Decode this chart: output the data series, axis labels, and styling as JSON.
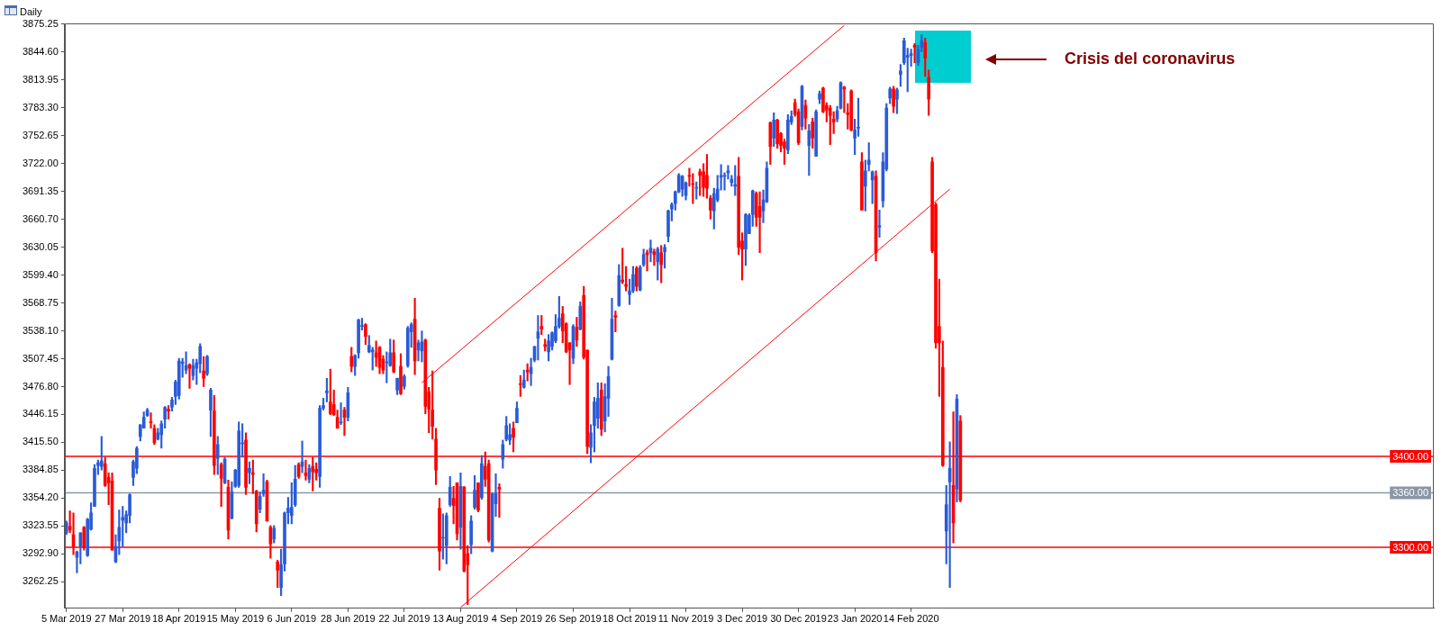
{
  "chart_data": {
    "type": "candlestick",
    "title": "Daily",
    "categories": [
      "5 Mar 2019",
      null,
      null,
      null,
      null,
      null,
      null,
      null,
      null,
      null,
      null,
      null,
      null,
      null,
      null,
      null,
      "27 Mar 2019",
      null,
      null,
      null,
      null,
      null,
      null,
      null,
      null,
      null,
      null,
      null,
      null,
      null,
      null,
      null,
      "18 Apr 2019",
      null,
      null,
      null,
      null,
      null,
      null,
      null,
      null,
      null,
      null,
      null,
      null,
      null,
      null,
      null,
      "15 May 2019",
      null,
      null,
      null,
      null,
      null,
      null,
      null,
      null,
      null,
      null,
      null,
      null,
      null,
      null,
      null,
      "6 Jun 2019",
      null,
      null,
      null,
      null,
      null,
      null,
      null,
      null,
      null,
      null,
      null,
      null,
      null,
      null,
      null,
      "28 Jun 2019",
      null,
      null,
      null,
      null,
      null,
      null,
      null,
      null,
      null,
      null,
      null,
      null,
      null,
      null,
      null,
      "22 Jul 2019",
      null,
      null,
      null,
      null,
      null,
      null,
      null,
      null,
      null,
      null,
      null,
      null,
      null,
      null,
      null,
      "13 Aug 2019",
      null,
      null,
      null,
      null,
      null,
      null,
      null,
      null,
      null,
      null,
      null,
      null,
      null,
      null,
      null,
      "4 Sep 2019",
      null,
      null,
      null,
      null,
      null,
      null,
      null,
      null,
      null,
      null,
      null,
      null,
      null,
      null,
      null,
      "26 Sep 2019",
      null,
      null,
      null,
      null,
      null,
      null,
      null,
      null,
      null,
      null,
      null,
      null,
      null,
      null,
      null,
      "18 Oct 2019",
      null,
      null,
      null,
      null,
      null,
      null,
      null,
      null,
      null,
      null,
      null,
      null,
      null,
      null,
      null,
      "11 Nov 2019",
      null,
      null,
      null,
      null,
      null,
      null,
      null,
      null,
      null,
      null,
      null,
      null,
      null,
      null,
      null,
      "3 Dec 2019",
      null,
      null,
      null,
      null,
      null,
      null,
      null,
      null,
      null,
      null,
      null,
      null,
      null,
      null,
      null,
      "30 Dec 2019",
      null,
      null,
      null,
      null,
      null,
      null,
      null,
      null,
      null,
      null,
      null,
      null,
      null,
      null,
      null,
      "23 Jan 2020",
      null,
      null,
      null,
      null,
      null,
      null,
      null,
      null,
      null,
      null,
      null,
      null,
      null,
      null,
      null,
      "14 Feb 2020",
      null,
      null,
      null,
      null,
      null,
      null,
      null,
      null,
      null,
      null,
      null,
      null,
      null,
      null
    ],
    "ohlc": [
      [
        3316,
        3329,
        3314,
        3327
      ],
      [
        3323,
        3340,
        3316,
        3319
      ],
      [
        3314,
        3338,
        3292,
        3301
      ],
      [
        3289,
        3296,
        3272,
        3295
      ],
      [
        3301,
        3316,
        3282,
        3316
      ],
      [
        3322,
        3323,
        3297,
        3300
      ],
      [
        3291,
        3332,
        3290,
        3331
      ],
      [
        3320,
        3349,
        3319,
        3338
      ],
      [
        3345,
        3391,
        3345,
        3387
      ],
      [
        3390,
        3396,
        3380,
        3393
      ],
      [
        3389,
        3422,
        3385,
        3395
      ],
      [
        3392,
        3399,
        3367,
        3368
      ],
      [
        3377,
        3382,
        3347,
        3371
      ],
      [
        3373,
        3382,
        3297,
        3297
      ],
      [
        3284,
        3314,
        3283,
        3301
      ],
      [
        3307,
        3341,
        3292,
        3322
      ],
      [
        3330,
        3345,
        3301,
        3333
      ],
      [
        3327,
        3340,
        3316,
        3336
      ],
      [
        3335,
        3359,
        3327,
        3358
      ],
      [
        3377,
        3396,
        3368,
        3394
      ],
      [
        3387,
        3411,
        3381,
        3409
      ],
      [
        3422,
        3435,
        3417,
        3435
      ],
      [
        3431,
        3449,
        3431,
        3443
      ],
      [
        3445,
        3453,
        3444,
        3451
      ],
      [
        3438,
        3448,
        3431,
        3437
      ],
      [
        3431,
        3435,
        3413,
        3415
      ],
      [
        3419,
        3431,
        3418,
        3426
      ],
      [
        3424,
        3439,
        3409,
        3436
      ],
      [
        3441,
        3455,
        3431,
        3454
      ],
      [
        3452,
        3456,
        3441,
        3450
      ],
      [
        3454,
        3465,
        3450,
        3462
      ],
      [
        3466,
        3484,
        3457,
        3482
      ],
      [
        3467,
        3508,
        3463,
        3505
      ],
      [
        3502,
        3508,
        3487,
        3504
      ],
      [
        3495,
        3515,
        3491,
        3500
      ],
      [
        3501,
        3502,
        3475,
        3497
      ],
      [
        3489,
        3507,
        3484,
        3500
      ],
      [
        3497,
        3507,
        3479,
        3503
      ],
      [
        3502,
        3524,
        3492,
        3521
      ],
      [
        3494,
        3510,
        3477,
        3486
      ],
      [
        3491,
        3511,
        3489,
        3510
      ],
      [
        3451,
        3475,
        3422,
        3473
      ],
      [
        3450,
        3467,
        3380,
        3390
      ],
      [
        3398,
        3422,
        3380,
        3413
      ],
      [
        3391,
        3393,
        3345,
        3376
      ],
      [
        3371,
        3399,
        3370,
        3397
      ],
      [
        3366,
        3374,
        3309,
        3319
      ],
      [
        3332,
        3372,
        3331,
        3361
      ],
      [
        3367,
        3386,
        3366,
        3385
      ],
      [
        3368,
        3438,
        3366,
        3428
      ],
      [
        3414,
        3436,
        3399,
        3415
      ],
      [
        3418,
        3426,
        3358,
        3366
      ],
      [
        3382,
        3394,
        3370,
        3387
      ],
      [
        3382,
        3396,
        3359,
        3380
      ],
      [
        3362,
        3363,
        3317,
        3326
      ],
      [
        3342,
        3361,
        3338,
        3356
      ],
      [
        3359,
        3381,
        3356,
        3363
      ],
      [
        3372,
        3374,
        3329,
        3329
      ],
      [
        3322,
        3324,
        3288,
        3304
      ],
      [
        3309,
        3324,
        3305,
        3321
      ],
      [
        3284,
        3286,
        3256,
        3275
      ],
      [
        3256,
        3298,
        3247,
        3281
      ],
      [
        3282,
        3339,
        3274,
        3338
      ],
      [
        3338,
        3355,
        3326,
        3343
      ],
      [
        3335,
        3371,
        3326,
        3344
      ],
      [
        3347,
        3390,
        3345,
        3375
      ],
      [
        3391,
        3393,
        3376,
        3378
      ],
      [
        3389,
        3417,
        3382,
        3394
      ],
      [
        3382,
        3396,
        3374,
        3379
      ],
      [
        3375,
        3391,
        3371,
        3387
      ],
      [
        3389,
        3399,
        3362,
        3383
      ],
      [
        3386,
        3393,
        3374,
        3382
      ],
      [
        3378,
        3456,
        3366,
        3453
      ],
      [
        3453,
        3464,
        3451,
        3456
      ],
      [
        3470,
        3486,
        3460,
        3472
      ],
      [
        3460,
        3496,
        3446,
        3447
      ],
      [
        3457,
        3473,
        3445,
        3446
      ],
      [
        3443,
        3451,
        3431,
        3431
      ],
      [
        3437,
        3459,
        3435,
        3438
      ],
      [
        3451,
        3454,
        3423,
        3443
      ],
      [
        3443,
        3476,
        3439,
        3470
      ],
      [
        3510,
        3520,
        3493,
        3499
      ],
      [
        3499,
        3512,
        3489,
        3511
      ],
      [
        3514,
        3551,
        3508,
        3550
      ],
      [
        3543,
        3552,
        3539,
        3544
      ],
      [
        3545,
        3546,
        3523,
        3532
      ],
      [
        3515,
        3533,
        3514,
        3522
      ],
      [
        3515,
        3520,
        3495,
        3517
      ],
      [
        3514,
        3527,
        3499,
        3509
      ],
      [
        3520,
        3521,
        3491,
        3498
      ],
      [
        3507,
        3511,
        3491,
        3495
      ],
      [
        3503,
        3515,
        3481,
        3504
      ],
      [
        3500,
        3529,
        3499,
        3514
      ],
      [
        3514,
        3528,
        3492,
        3493
      ],
      [
        3473,
        3486,
        3468,
        3486
      ],
      [
        3499,
        3513,
        3468,
        3469
      ],
      [
        3477,
        3490,
        3474,
        3488
      ],
      [
        3500,
        3543,
        3498,
        3541
      ],
      [
        3537,
        3547,
        3520,
        3545
      ],
      [
        3551,
        3574,
        3490,
        3505
      ],
      [
        3517,
        3528,
        3505,
        3525
      ],
      [
        3516,
        3538,
        3504,
        3526
      ],
      [
        3528,
        3529,
        3447,
        3455
      ],
      [
        3471,
        3476,
        3426,
        3452
      ],
      [
        3451,
        3494,
        3419,
        3433
      ],
      [
        3419,
        3431,
        3369,
        3385
      ],
      [
        3343,
        3354,
        3275,
        3296
      ],
      [
        3310,
        3337,
        3287,
        3311
      ],
      [
        3302,
        3338,
        3282,
        3335
      ],
      [
        3347,
        3378,
        3345,
        3366
      ],
      [
        3354,
        3367,
        3326,
        3346
      ],
      [
        3371,
        3371,
        3308,
        3315
      ],
      [
        3322,
        3382,
        3298,
        3367
      ],
      [
        3366,
        3367,
        3273,
        3274
      ],
      [
        3293,
        3302,
        3237,
        3281
      ],
      [
        3303,
        3335,
        3293,
        3329
      ],
      [
        3344,
        3379,
        3342,
        3363
      ],
      [
        3371,
        3371,
        3339,
        3341
      ],
      [
        3355,
        3401,
        3353,
        3392
      ],
      [
        3389,
        3405,
        3367,
        3375
      ],
      [
        3392,
        3396,
        3306,
        3308
      ],
      [
        3296,
        3360,
        3295,
        3359
      ],
      [
        3348,
        3381,
        3334,
        3359
      ],
      [
        3366,
        3370,
        3333,
        3364
      ],
      [
        3397,
        3418,
        3387,
        3413
      ],
      [
        3419,
        3444,
        3417,
        3434
      ],
      [
        3418,
        3436,
        3413,
        3424
      ],
      [
        3431,
        3438,
        3405,
        3421
      ],
      [
        3437,
        3460,
        3437,
        3453
      ],
      [
        3480,
        3489,
        3466,
        3479
      ],
      [
        3476,
        3495,
        3475,
        3484
      ],
      [
        3495,
        3502,
        3483,
        3493
      ],
      [
        3491,
        3508,
        3478,
        3498
      ],
      [
        3506,
        3521,
        3504,
        3521
      ],
      [
        3530,
        3555,
        3506,
        3537
      ],
      [
        3543,
        3555,
        3534,
        3540
      ],
      [
        3523,
        3529,
        3516,
        3521
      ],
      [
        3515,
        3534,
        3505,
        3527
      ],
      [
        3521,
        3537,
        3517,
        3536
      ],
      [
        3527,
        3556,
        3525,
        3543
      ],
      [
        3543,
        3576,
        3541,
        3552
      ],
      [
        3557,
        3565,
        3525,
        3538
      ],
      [
        3546,
        3547,
        3514,
        3515
      ],
      [
        3525,
        3525,
        3479,
        3517
      ],
      [
        3508,
        3545,
        3502,
        3543
      ],
      [
        3542,
        3553,
        3521,
        3528
      ],
      [
        3540,
        3570,
        3539,
        3565
      ],
      [
        3577,
        3587,
        3507,
        3509
      ],
      [
        3517,
        3517,
        3403,
        3411
      ],
      [
        3410,
        3435,
        3393,
        3426
      ],
      [
        3434,
        3465,
        3405,
        3460
      ],
      [
        3442,
        3481,
        3431,
        3464
      ],
      [
        3473,
        3481,
        3423,
        3430
      ],
      [
        3439,
        3480,
        3427,
        3466
      ],
      [
        3464,
        3499,
        3444,
        3488
      ],
      [
        3507,
        3574,
        3506,
        3551
      ],
      [
        3555,
        3560,
        3537,
        3553
      ],
      [
        3566,
        3611,
        3565,
        3599
      ],
      [
        3594,
        3629,
        3590,
        3592
      ],
      [
        3589,
        3609,
        3582,
        3587
      ],
      [
        3578,
        3595,
        3567,
        3582
      ],
      [
        3582,
        3609,
        3580,
        3600
      ],
      [
        3607,
        3609,
        3582,
        3587
      ],
      [
        3583,
        3610,
        3582,
        3608
      ],
      [
        3611,
        3628,
        3609,
        3622
      ],
      [
        3624,
        3627,
        3604,
        3622
      ],
      [
        3624,
        3638,
        3614,
        3629
      ],
      [
        3625,
        3628,
        3610,
        3622
      ],
      [
        3614,
        3630,
        3594,
        3628
      ],
      [
        3624,
        3632,
        3591,
        3611
      ],
      [
        3625,
        3633,
        3607,
        3630
      ],
      [
        3642,
        3671,
        3636,
        3670
      ],
      [
        3672,
        3679,
        3659,
        3677
      ],
      [
        3678,
        3692,
        3671,
        3691
      ],
      [
        3691,
        3711,
        3690,
        3709
      ],
      [
        3694,
        3709,
        3686,
        3708
      ],
      [
        3687,
        3702,
        3682,
        3701
      ],
      [
        3709,
        3717,
        3697,
        3708
      ],
      [
        3700,
        3711,
        3678,
        3699
      ],
      [
        3695,
        3702,
        3683,
        3696
      ],
      [
        3713,
        3716,
        3687,
        3709
      ],
      [
        3713,
        3722,
        3686,
        3696
      ],
      [
        3709,
        3732,
        3684,
        3695
      ],
      [
        3684,
        3687,
        3661,
        3671
      ],
      [
        3670,
        3695,
        3650,
        3689
      ],
      [
        3682,
        3709,
        3680,
        3694
      ],
      [
        3707,
        3721,
        3693,
        3709
      ],
      [
        3708,
        3712,
        3693,
        3709
      ],
      [
        3712,
        3720,
        3705,
        3714
      ],
      [
        3701,
        3709,
        3697,
        3705
      ],
      [
        3697,
        3720,
        3687,
        3699
      ],
      [
        3708,
        3729,
        3622,
        3630
      ],
      [
        3637,
        3646,
        3594,
        3628
      ],
      [
        3628,
        3667,
        3610,
        3666
      ],
      [
        3645,
        3667,
        3645,
        3665
      ],
      [
        3666,
        3693,
        3653,
        3692
      ],
      [
        3689,
        3691,
        3653,
        3663
      ],
      [
        3675,
        3691,
        3624,
        3663
      ],
      [
        3670,
        3693,
        3657,
        3682
      ],
      [
        3680,
        3724,
        3679,
        3717
      ],
      [
        3767,
        3768,
        3721,
        3741
      ],
      [
        3750,
        3778,
        3741,
        3770
      ],
      [
        3770,
        3771,
        3739,
        3744
      ],
      [
        3755,
        3756,
        3735,
        3742
      ],
      [
        3746,
        3749,
        3721,
        3739
      ],
      [
        3737,
        3776,
        3733,
        3770
      ],
      [
        3768,
        3780,
        3765,
        3774
      ],
      [
        3789,
        3793,
        3774,
        3776
      ],
      [
        3779,
        3782,
        3743,
        3745
      ],
      [
        3763,
        3808,
        3759,
        3807
      ],
      [
        3786,
        3792,
        3760,
        3772
      ],
      [
        3742,
        3765,
        3709,
        3758
      ],
      [
        3768,
        3772,
        3739,
        3750
      ],
      [
        3730,
        3781,
        3730,
        3779
      ],
      [
        3793,
        3802,
        3788,
        3799
      ],
      [
        3805,
        3806,
        3778,
        3779
      ],
      [
        3786,
        3789,
        3768,
        3781
      ],
      [
        3783,
        3786,
        3743,
        3775
      ],
      [
        3771,
        3779,
        3755,
        3768
      ],
      [
        3771,
        3785,
        3768,
        3780
      ],
      [
        3783,
        3812,
        3782,
        3811
      ],
      [
        3806,
        3807,
        3778,
        3804
      ],
      [
        3778,
        3788,
        3760,
        3776
      ],
      [
        3802,
        3803,
        3758,
        3759
      ],
      [
        3750,
        3771,
        3732,
        3759
      ],
      [
        3761,
        3794,
        3752,
        3762
      ],
      [
        3724,
        3734,
        3671,
        3671
      ],
      [
        3697,
        3726,
        3670,
        3714
      ],
      [
        3721,
        3745,
        3714,
        3726
      ],
      [
        3704,
        3714,
        3678,
        3713
      ],
      [
        3708,
        3714,
        3615,
        3624
      ],
      [
        3652,
        3671,
        3641,
        3654
      ],
      [
        3681,
        3734,
        3674,
        3724
      ],
      [
        3716,
        3788,
        3714,
        3783
      ],
      [
        3794,
        3806,
        3788,
        3804
      ],
      [
        3804,
        3807,
        3778,
        3785
      ],
      [
        3793,
        3805,
        3777,
        3803
      ],
      [
        3820,
        3831,
        3807,
        3824
      ],
      [
        3833,
        3860,
        3831,
        3857
      ],
      [
        3839,
        3849,
        3801,
        3841
      ],
      [
        3841,
        3848,
        3829,
        3843
      ],
      [
        3852,
        3854,
        3833,
        3850
      ],
      [
        3833,
        3852,
        3830,
        3848
      ],
      [
        3850,
        3864,
        3845,
        3857
      ],
      [
        3855,
        3860,
        3818,
        3838
      ],
      [
        3817,
        3825,
        3775,
        3793
      ],
      [
        3724,
        3729,
        3624,
        3626
      ],
      [
        3677,
        3679,
        3519,
        3525
      ],
      [
        3543,
        3595,
        3466,
        3525
      ],
      [
        3498,
        3527,
        3389,
        3390
      ],
      [
        3318,
        3368,
        3282,
        3347
      ],
      [
        3372,
        3416,
        3256,
        3387
      ],
      [
        3368,
        3449,
        3305,
        3327
      ],
      [
        3364,
        3468,
        3350,
        3463
      ],
      [
        3439,
        3445,
        3350,
        3352
      ]
    ],
    "colors": [
      "#2a5bd7",
      "#ff0000",
      "#ff0000",
      "#2a5bd7",
      "#2a5bd7",
      "#ff0000",
      "#2a5bd7",
      "#2a5bd7",
      "#2a5bd7",
      "#2a5bd7",
      "#2a5bd7",
      "#ff0000",
      "#ff0000",
      "#ff0000",
      "#2a5bd7",
      "#2a5bd7",
      "#2a5bd7",
      "#2a5bd7",
      "#2a5bd7",
      "#2a5bd7",
      "#2a5bd7",
      "#2a5bd7",
      "#2a5bd7",
      "#2a5bd7",
      "#ff0000",
      "#ff0000",
      "#2a5bd7",
      "#2a5bd7",
      "#2a5bd7",
      "#ff0000",
      "#2a5bd7",
      "#2a5bd7",
      "#2a5bd7",
      "#2a5bd7",
      "#2a5bd7",
      "#ff0000",
      "#2a5bd7",
      "#2a5bd7",
      "#2a5bd7",
      "#ff0000",
      "#2a5bd7",
      "#2a5bd7",
      "#ff0000",
      "#2a5bd7",
      "#ff0000",
      "#2a5bd7",
      "#ff0000",
      "#2a5bd7",
      "#2a5bd7",
      "#2a5bd7",
      "#2a5bd7",
      "#ff0000",
      "#2a5bd7",
      "#ff0000",
      "#ff0000",
      "#2a5bd7",
      "#2a5bd7",
      "#ff0000",
      "#ff0000",
      "#2a5bd7",
      "#ff0000",
      "#2a5bd7",
      "#2a5bd7",
      "#2a5bd7",
      "#2a5bd7",
      "#2a5bd7",
      "#ff0000",
      "#2a5bd7",
      "#ff0000",
      "#2a5bd7",
      "#ff0000",
      "#ff0000",
      "#2a5bd7",
      "#2a5bd7",
      "#2a5bd7",
      "#ff0000",
      "#ff0000",
      "#ff0000",
      "#2a5bd7",
      "#ff0000",
      "#2a5bd7",
      "#ff0000",
      "#2a5bd7",
      "#2a5bd7",
      "#2a5bd7",
      "#ff0000",
      "#2a5bd7",
      "#2a5bd7",
      "#ff0000",
      "#ff0000",
      "#ff0000",
      "#2a5bd7",
      "#2a5bd7",
      "#ff0000",
      "#2a5bd7",
      "#ff0000",
      "#2a5bd7",
      "#2a5bd7",
      "#2a5bd7",
      "#ff0000",
      "#2a5bd7",
      "#2a5bd7",
      "#ff0000",
      "#ff0000",
      "#ff0000",
      "#ff0000",
      "#ff0000",
      "#2a5bd7",
      "#2a5bd7",
      "#2a5bd7",
      "#ff0000",
      "#ff0000",
      "#2a5bd7",
      "#ff0000",
      "#ff0000",
      "#2a5bd7",
      "#2a5bd7",
      "#ff0000",
      "#2a5bd7",
      "#ff0000",
      "#ff0000",
      "#2a5bd7",
      "#2a5bd7",
      "#ff0000",
      "#2a5bd7",
      "#2a5bd7",
      "#2a5bd7",
      "#ff0000",
      "#2a5bd7",
      "#ff0000",
      "#2a5bd7",
      "#ff0000",
      "#2a5bd7",
      "#2a5bd7",
      "#2a5bd7",
      "#ff0000",
      "#ff0000",
      "#2a5bd7",
      "#2a5bd7",
      "#2a5bd7",
      "#2a5bd7",
      "#ff0000",
      "#ff0000",
      "#ff0000",
      "#2a5bd7",
      "#ff0000",
      "#2a5bd7",
      "#ff0000",
      "#ff0000",
      "#2a5bd7",
      "#2a5bd7",
      "#2a5bd7",
      "#ff0000",
      "#2a5bd7",
      "#2a5bd7",
      "#2a5bd7",
      "#ff0000",
      "#2a5bd7",
      "#ff0000",
      "#ff0000",
      "#2a5bd7",
      "#2a5bd7",
      "#ff0000",
      "#2a5bd7",
      "#2a5bd7",
      "#ff0000",
      "#2a5bd7",
      "#ff0000",
      "#2a5bd7",
      "#ff0000",
      "#2a5bd7",
      "#2a5bd7",
      "#2a5bd7",
      "#2a5bd7",
      "#2a5bd7",
      "#2a5bd7",
      "#2a5bd7",
      "#ff0000",
      "#ff0000",
      "#2a5bd7",
      "#ff0000",
      "#ff0000",
      "#ff0000",
      "#ff0000",
      "#2a5bd7",
      "#2a5bd7",
      "#2a5bd7",
      "#2a5bd7",
      "#2a5bd7",
      "#2a5bd7",
      "#2a5bd7",
      "#ff0000",
      "#ff0000",
      "#2a5bd7",
      "#2a5bd7",
      "#2a5bd7",
      "#ff0000",
      "#ff0000",
      "#2a5bd7",
      "#2a5bd7",
      "#ff0000",
      "#2a5bd7",
      "#ff0000",
      "#ff0000",
      "#ff0000",
      "#2a5bd7",
      "#2a5bd7",
      "#ff0000",
      "#ff0000",
      "#2a5bd7",
      "#ff0000",
      "#2a5bd7",
      "#ff0000",
      "#2a5bd7",
      "#2a5bd7",
      "#ff0000",
      "#ff0000",
      "#ff0000",
      "#ff0000",
      "#2a5bd7",
      "#2a5bd7",
      "#ff0000",
      "#ff0000",
      "#ff0000",
      "#2a5bd7",
      "#2a5bd7",
      "#ff0000",
      "#2a5bd7",
      "#2a5bd7",
      "#2a5bd7",
      "#ff0000",
      "#2a5bd7",
      "#2a5bd7",
      "#2a5bd7",
      "#2a5bd7",
      "#ff0000",
      "#2a5bd7",
      "#2a5bd7",
      "#2a5bd7",
      "#2a5bd7",
      "#2a5bd7",
      "#ff0000",
      "#2a5bd7",
      "#2a5bd7",
      "#ff0000",
      "#ff0000",
      "#ff0000",
      "#ff0000",
      "#ff0000",
      "#ff0000",
      "#2a5bd7",
      "#2a5bd7",
      "#ff0000",
      "#2a5bd7",
      "#ff0000"
    ],
    "series": [
      {
        "type": "line",
        "color": "#ff0000",
        "values": [
          null,
          null,
          null,
          null,
          null,
          null,
          null,
          null,
          null,
          null,
          null,
          null,
          null,
          null,
          null,
          null,
          null,
          null,
          null,
          null,
          null,
          null,
          null,
          null,
          null,
          null,
          null,
          null,
          null,
          null,
          null,
          null,
          null,
          null,
          null,
          null,
          null,
          null,
          null,
          null,
          null,
          null,
          null,
          null,
          null,
          null,
          null,
          null,
          null,
          null,
          null,
          null,
          null,
          null,
          null,
          null,
          null,
          null,
          null,
          null,
          null,
          null,
          null,
          null,
          null,
          null,
          null,
          null,
          null,
          null,
          null,
          null,
          null,
          null,
          null,
          null,
          null,
          null,
          null,
          null,
          null,
          null,
          null,
          null,
          null,
          null,
          null,
          null,
          null,
          null,
          null,
          null,
          null,
          null,
          null,
          null,
          null,
          null,
          null,
          null,
          null,
          3481,
          null,
          null,
          null,
          null,
          null,
          null,
          null,
          null,
          null,
          null,
          null,
          null,
          null,
          null,
          null,
          null,
          null,
          null,
          null,
          null,
          null,
          null,
          null,
          null,
          null,
          null,
          null,
          null,
          null,
          null,
          null,
          null,
          null,
          null,
          null,
          null,
          null,
          null,
          null,
          null,
          null,
          null,
          null,
          null,
          null,
          null,
          null,
          null,
          null,
          null,
          null,
          null,
          null,
          null,
          null,
          null,
          null,
          null,
          null,
          null,
          null,
          null,
          null,
          null,
          null,
          null,
          null,
          null,
          null,
          null,
          null,
          null,
          null,
          null,
          null,
          null,
          null,
          null,
          null,
          null,
          null,
          null,
          null,
          null,
          null,
          null,
          null,
          null,
          null,
          null,
          null,
          null,
          null,
          null,
          null,
          null,
          null,
          null,
          null,
          null,
          null,
          null,
          null,
          null,
          null,
          null,
          null,
          null,
          null,
          null,
          null,
          null,
          null,
          null,
          null,
          null,
          null,
          null,
          null,
          3874,
          null,
          null,
          null,
          null,
          null,
          null,
          null,
          null,
          null,
          null,
          null,
          null,
          null,
          null,
          null,
          null,
          null,
          null,
          null,
          null,
          null,
          null,
          null,
          null,
          null,
          null,
          null,
          null,
          null,
          null,
          null,
          null,
          null
        ]
      },
      {
        "type": "line",
        "color": "#ff0000",
        "values": [
          null,
          null,
          null,
          null,
          null,
          null,
          null,
          null,
          null,
          null,
          null,
          null,
          null,
          null,
          null,
          null,
          null,
          null,
          null,
          null,
          null,
          null,
          null,
          null,
          null,
          null,
          null,
          null,
          null,
          null,
          null,
          null,
          null,
          null,
          null,
          null,
          null,
          null,
          null,
          null,
          null,
          null,
          null,
          null,
          null,
          null,
          null,
          null,
          null,
          null,
          null,
          null,
          null,
          null,
          null,
          null,
          null,
          null,
          null,
          null,
          null,
          null,
          null,
          null,
          null,
          null,
          null,
          null,
          null,
          null,
          null,
          null,
          null,
          null,
          null,
          null,
          null,
          null,
          null,
          null,
          null,
          null,
          null,
          null,
          null,
          null,
          null,
          null,
          null,
          null,
          null,
          null,
          null,
          null,
          null,
          null,
          null,
          null,
          null,
          null,
          null,
          null,
          null,
          null,
          null,
          null,
          null,
          null,
          null,
          null,
          null,
          null,
          3234,
          null,
          null,
          null,
          null,
          null,
          null,
          null,
          null,
          null,
          null,
          null,
          null,
          null,
          null,
          null,
          null,
          null,
          null,
          null,
          null,
          null,
          null,
          null,
          null,
          null,
          null,
          null,
          null,
          null,
          null,
          null,
          null,
          null,
          null,
          null,
          null,
          null,
          null,
          null,
          null,
          null,
          null,
          null,
          null,
          null,
          null,
          null,
          null,
          null,
          null,
          null,
          null,
          null,
          null,
          null,
          null,
          null,
          null,
          null,
          null,
          null,
          null,
          null,
          null,
          null,
          null,
          null,
          null,
          null,
          null,
          null,
          null,
          null,
          null,
          null,
          null,
          null,
          null,
          null,
          null,
          null,
          null,
          null,
          null,
          null,
          null,
          null,
          null,
          null,
          null,
          null,
          null,
          null,
          null,
          null,
          null,
          null,
          null,
          null,
          null,
          null,
          null,
          null,
          null,
          null,
          null,
          null,
          null,
          null,
          null,
          null,
          null,
          null,
          null,
          null,
          null,
          null,
          null,
          null,
          null,
          null,
          null,
          null,
          null,
          null,
          null,
          null,
          null,
          null,
          null,
          null,
          null,
          null,
          null,
          null,
          null,
          null,
          null,
          3694,
          null,
          null,
          null
        ]
      }
    ],
    "ylim": [
      3233,
      3876
    ],
    "yticks": [
      3262.25,
      {
        "value": 3292.9,
        "label": "3292.90"
      },
      3323.55,
      {
        "value": 3354.2,
        "label": "3354.20"
      },
      3384.85,
      {
        "value": 3415.5,
        "label": "3415.50"
      },
      3446.15,
      {
        "value": 3476.8,
        "label": "3476.80"
      },
      3507.45,
      {
        "value": 3538.1,
        "label": "3538.10"
      },
      3568.75,
      {
        "value": 3599.4,
        "label": "3599.40"
      },
      3630.05,
      {
        "value": 3660.7,
        "label": "3660.70"
      },
      3691.35,
      {
        "value": 3722,
        "label": "3722.00"
      },
      3752.65,
      {
        "value": 3783.3,
        "label": "3783.30"
      },
      3813.95,
      {
        "value": 3844.6,
        "label": "3844.60"
      },
      3875.25
    ],
    "ref_lines": [
      {
        "axis": "y",
        "value": 3400,
        "label": "3400.00",
        "color": "#ff0000"
      },
      {
        "axis": "y",
        "value": 3360,
        "label": "3360.00",
        "color": "#8896a5"
      },
      {
        "axis": "y",
        "value": 3300,
        "label": "3300.00",
        "color": "#ff0000"
      }
    ],
    "annotations": [
      "Crisis del coronavirus"
    ]
  }
}
